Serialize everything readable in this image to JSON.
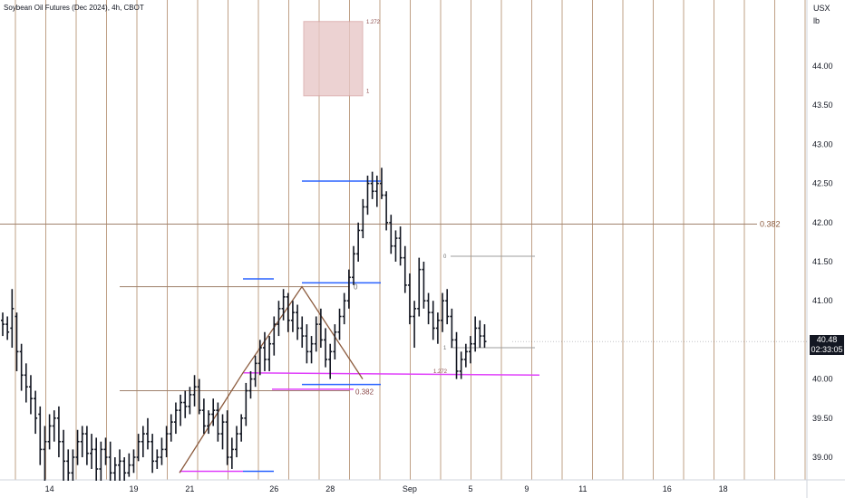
{
  "header": {
    "title": "Soybean Oil Futures (Dec 2024), 4h, CBOT"
  },
  "axis_unit": {
    "line1": "USX",
    "line2": "lb"
  },
  "price_badge": {
    "price": "40.48",
    "countdown": "02:33:05"
  },
  "colors": {
    "bar": "#131722",
    "vline": "#b08968",
    "fib": "#a0826d",
    "blue": "#2962ff",
    "magenta": "#e040fb",
    "zigzag": "#8b5a3c",
    "box": "#e8c8c8"
  },
  "chart_data": {
    "type": "ohlc",
    "title": "Soybean Oil Futures (Dec 2024), 4h, CBOT",
    "y_ticks": [
      "39.00",
      "39.50",
      "40.00",
      "40.50",
      "41.00",
      "41.50",
      "42.00",
      "42.50",
      "43.00",
      "43.50",
      "44.00"
    ],
    "x_ticks": [
      {
        "label": "14",
        "slot": 10
      },
      {
        "label": "19",
        "slot": 28
      },
      {
        "label": "21",
        "slot": 40
      },
      {
        "label": "26",
        "slot": 58
      },
      {
        "label": "28",
        "slot": 70
      },
      {
        "label": "Sep",
        "slot": 87
      },
      {
        "label": "5",
        "slot": 100
      },
      {
        "label": "9",
        "slot": 112
      },
      {
        "label": "11",
        "slot": 124
      },
      {
        "label": "16",
        "slot": 142
      },
      {
        "label": "18",
        "slot": 154
      }
    ],
    "ylim": [
      38.7,
      44.7
    ],
    "bars": [
      [
        40.75,
        40.85,
        40.55,
        40.7
      ],
      [
        40.7,
        40.8,
        40.5,
        40.6
      ],
      [
        40.65,
        41.15,
        40.4,
        40.9
      ],
      [
        40.8,
        40.85,
        40.1,
        40.35
      ],
      [
        40.35,
        40.45,
        39.85,
        40.05
      ],
      [
        40.05,
        40.2,
        39.7,
        39.9
      ],
      [
        39.9,
        40.05,
        39.55,
        39.75
      ],
      [
        39.75,
        39.85,
        39.3,
        39.5
      ],
      [
        39.55,
        39.65,
        38.9,
        39.1
      ],
      [
        39.1,
        39.4,
        38.7,
        39.2
      ],
      [
        39.2,
        39.55,
        39.1,
        39.4
      ],
      [
        39.4,
        39.6,
        39.2,
        39.5
      ],
      [
        39.5,
        39.65,
        39.0,
        39.2
      ],
      [
        39.2,
        39.35,
        38.7,
        38.95
      ],
      [
        38.95,
        39.1,
        38.7,
        38.8
      ],
      [
        38.8,
        39.1,
        38.7,
        39.0
      ],
      [
        39.0,
        39.35,
        38.9,
        39.2
      ],
      [
        39.2,
        39.4,
        39.0,
        39.3
      ],
      [
        39.3,
        39.4,
        38.9,
        39.05
      ],
      [
        39.05,
        39.3,
        38.85,
        39.1
      ],
      [
        39.1,
        39.25,
        38.7,
        38.85
      ],
      [
        38.85,
        39.2,
        38.7,
        39.1
      ],
      [
        39.1,
        39.25,
        38.9,
        39.0
      ],
      [
        39.0,
        39.2,
        38.7,
        38.8
      ],
      [
        38.8,
        39.0,
        38.7,
        38.9
      ],
      [
        38.9,
        39.1,
        38.7,
        38.95
      ],
      [
        38.95,
        39.0,
        38.7,
        38.8
      ],
      [
        38.8,
        39.05,
        38.75,
        38.9
      ],
      [
        38.9,
        39.1,
        38.8,
        39.0
      ],
      [
        39.0,
        39.3,
        38.95,
        39.2
      ],
      [
        39.2,
        39.4,
        39.0,
        39.3
      ],
      [
        39.3,
        39.5,
        39.1,
        39.2
      ],
      [
        39.2,
        39.3,
        38.8,
        38.95
      ],
      [
        38.95,
        39.1,
        38.85,
        39.0
      ],
      [
        39.0,
        39.25,
        38.9,
        39.1
      ],
      [
        39.1,
        39.4,
        39.0,
        39.3
      ],
      [
        39.3,
        39.55,
        39.2,
        39.45
      ],
      [
        39.45,
        39.7,
        39.3,
        39.6
      ],
      [
        39.6,
        39.8,
        39.4,
        39.7
      ],
      [
        39.7,
        39.85,
        39.5,
        39.65
      ],
      [
        39.65,
        39.9,
        39.55,
        39.8
      ],
      [
        39.8,
        40.05,
        39.65,
        39.9
      ],
      [
        39.9,
        40.0,
        39.55,
        39.6
      ],
      [
        39.6,
        39.75,
        39.3,
        39.4
      ],
      [
        39.4,
        39.6,
        39.3,
        39.55
      ],
      [
        39.55,
        39.75,
        39.4,
        39.6
      ],
      [
        39.6,
        39.7,
        39.2,
        39.3
      ],
      [
        39.3,
        39.55,
        39.1,
        39.45
      ],
      [
        39.45,
        39.6,
        38.9,
        39.0
      ],
      [
        39.0,
        39.25,
        38.85,
        39.1
      ],
      [
        39.1,
        39.4,
        39.0,
        39.3
      ],
      [
        39.3,
        39.55,
        39.2,
        39.5
      ],
      [
        39.5,
        39.95,
        39.4,
        39.85
      ],
      [
        39.85,
        40.1,
        39.75,
        40.0
      ],
      [
        40.0,
        40.3,
        39.9,
        40.2
      ],
      [
        40.2,
        40.5,
        40.05,
        40.4
      ],
      [
        40.4,
        40.6,
        40.1,
        40.25
      ],
      [
        40.25,
        40.55,
        40.1,
        40.45
      ],
      [
        40.45,
        40.8,
        40.3,
        40.7
      ],
      [
        40.7,
        41.0,
        40.55,
        40.9
      ],
      [
        40.9,
        41.15,
        40.75,
        41.05
      ],
      [
        41.05,
        41.1,
        40.6,
        40.75
      ],
      [
        40.75,
        41.0,
        40.6,
        40.85
      ],
      [
        40.85,
        40.95,
        40.5,
        40.65
      ],
      [
        40.65,
        40.8,
        40.4,
        40.55
      ],
      [
        40.55,
        40.7,
        40.2,
        40.35
      ],
      [
        40.35,
        40.55,
        40.2,
        40.45
      ],
      [
        40.45,
        40.8,
        40.35,
        40.7
      ],
      [
        40.7,
        40.9,
        40.4,
        40.5
      ],
      [
        40.5,
        40.65,
        40.15,
        40.25
      ],
      [
        40.25,
        40.45,
        40.0,
        40.35
      ],
      [
        40.35,
        40.7,
        40.25,
        40.6
      ],
      [
        40.6,
        40.9,
        40.5,
        40.8
      ],
      [
        40.8,
        41.1,
        40.7,
        41.0
      ],
      [
        41.0,
        41.4,
        40.9,
        41.3
      ],
      [
        41.3,
        41.7,
        41.2,
        41.6
      ],
      [
        41.6,
        42.0,
        41.5,
        41.9
      ],
      [
        41.9,
        42.3,
        41.8,
        42.2
      ],
      [
        42.2,
        42.6,
        42.1,
        42.5
      ],
      [
        42.5,
        42.65,
        42.3,
        42.4
      ],
      [
        42.4,
        42.6,
        42.2,
        42.5
      ],
      [
        42.5,
        42.7,
        42.3,
        42.35
      ],
      [
        42.35,
        42.4,
        41.9,
        42.0
      ],
      [
        42.0,
        42.1,
        41.6,
        41.7
      ],
      [
        41.7,
        41.9,
        41.5,
        41.8
      ],
      [
        41.8,
        41.95,
        41.45,
        41.55
      ],
      [
        41.55,
        41.7,
        41.1,
        41.2
      ],
      [
        41.2,
        41.35,
        40.7,
        40.8
      ],
      [
        40.8,
        41.0,
        40.4,
        40.9
      ],
      [
        40.9,
        41.55,
        40.8,
        41.4
      ],
      [
        41.4,
        41.5,
        40.9,
        41.0
      ],
      [
        41.0,
        41.1,
        40.7,
        40.85
      ],
      [
        40.85,
        41.0,
        40.5,
        40.65
      ],
      [
        40.65,
        40.85,
        40.45,
        40.75
      ],
      [
        40.75,
        41.1,
        40.6,
        41.0
      ],
      [
        41.0,
        41.15,
        40.7,
        40.8
      ],
      [
        40.8,
        40.9,
        40.4,
        40.5
      ],
      [
        40.5,
        40.6,
        40.0,
        40.1
      ],
      [
        40.1,
        40.35,
        40.0,
        40.25
      ],
      [
        40.25,
        40.45,
        40.15,
        40.35
      ],
      [
        40.35,
        40.55,
        40.2,
        40.45
      ],
      [
        40.45,
        40.8,
        40.35,
        40.65
      ],
      [
        40.65,
        40.75,
        40.4,
        40.55
      ],
      [
        40.55,
        40.7,
        40.4,
        40.48
      ]
    ],
    "fib_labels": [
      {
        "text": "0.382",
        "price": 41.98,
        "slot": 183
      },
      {
        "text": "0",
        "price": 41.18,
        "slot": 83
      },
      {
        "text": "0.382",
        "price": 39.85,
        "slot": 85
      },
      {
        "text": "1.272",
        "price": 44.57,
        "slot": 87
      },
      {
        "text": "1",
        "price": 43.68,
        "slot": 87
      },
      {
        "text": "0",
        "price": 41.57,
        "slot": 106
      },
      {
        "text": "1",
        "price": 40.4,
        "slot": 106
      },
      {
        "text": "1.272",
        "price": 40.1,
        "slot": 104
      }
    ]
  }
}
